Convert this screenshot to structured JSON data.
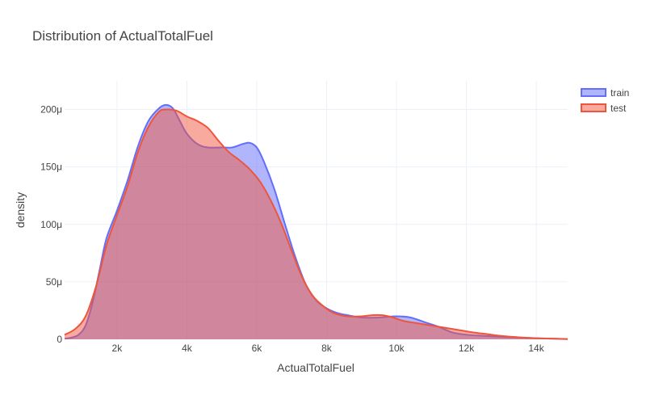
{
  "chart_data": {
    "type": "area",
    "title": "Distribution of ActualTotalFuel",
    "xlabel": "ActualTotalFuel",
    "ylabel": "density",
    "xlim": [
      500,
      14900
    ],
    "ylim": [
      0,
      0.000225
    ],
    "x_ticks": [
      {
        "value": 2000,
        "label": "2k"
      },
      {
        "value": 4000,
        "label": "4k"
      },
      {
        "value": 6000,
        "label": "6k"
      },
      {
        "value": 8000,
        "label": "8k"
      },
      {
        "value": 10000,
        "label": "10k"
      },
      {
        "value": 12000,
        "label": "12k"
      },
      {
        "value": 14000,
        "label": "14k"
      }
    ],
    "y_ticks": [
      {
        "value": 0,
        "label": "0"
      },
      {
        "value": 5e-05,
        "label": "50μ"
      },
      {
        "value": 0.0001,
        "label": "100μ"
      },
      {
        "value": 0.00015,
        "label": "150μ"
      },
      {
        "value": 0.0002,
        "label": "200μ"
      }
    ],
    "grid": true,
    "legend_position": "top-right",
    "series": [
      {
        "name": "train",
        "color": "#636efa",
        "fill": "rgba(99,110,250,0.5)",
        "points": [
          [
            500,
            5e-07
          ],
          [
            700,
            1.5e-06
          ],
          [
            900,
            4e-06
          ],
          [
            1100,
            1.2e-05
          ],
          [
            1300,
            3.2e-05
          ],
          [
            1500,
            6e-05
          ],
          [
            1700,
            8.8e-05
          ],
          [
            2000,
            0.000112
          ],
          [
            2300,
            0.000138
          ],
          [
            2600,
            0.000168
          ],
          [
            2900,
            0.00019
          ],
          [
            3200,
            0.000201
          ],
          [
            3400,
            0.000204
          ],
          [
            3600,
            0.000201
          ],
          [
            3800,
            0.00019
          ],
          [
            4000,
            0.000179
          ],
          [
            4300,
            0.00017
          ],
          [
            4600,
            0.000167
          ],
          [
            5000,
            0.000167
          ],
          [
            5300,
            0.000167
          ],
          [
            5600,
            0.00017
          ],
          [
            5800,
            0.000171
          ],
          [
            6000,
            0.000167
          ],
          [
            6200,
            0.000155
          ],
          [
            6500,
            0.000131
          ],
          [
            6800,
            0.000101
          ],
          [
            7100,
            7.2e-05
          ],
          [
            7400,
            4.8e-05
          ],
          [
            7700,
            3.4e-05
          ],
          [
            8000,
            2.7e-05
          ],
          [
            8300,
            2.3e-05
          ],
          [
            8600,
            2.1e-05
          ],
          [
            9000,
            1.9e-05
          ],
          [
            9500,
            1.9e-05
          ],
          [
            10000,
            2e-05
          ],
          [
            10400,
            1.9e-05
          ],
          [
            10800,
            1.5e-05
          ],
          [
            11200,
            1.1e-05
          ],
          [
            11600,
            6e-06
          ],
          [
            12000,
            4e-06
          ],
          [
            12500,
            3e-06
          ],
          [
            13000,
            2.2e-06
          ],
          [
            13500,
            1.5e-06
          ],
          [
            14000,
            1e-06
          ],
          [
            14500,
            5e-07
          ],
          [
            14900,
            2e-07
          ]
        ]
      },
      {
        "name": "test",
        "color": "#ef553b",
        "fill": "rgba(239,85,59,0.5)",
        "points": [
          [
            500,
            4e-06
          ],
          [
            800,
            9e-06
          ],
          [
            1100,
            2e-05
          ],
          [
            1400,
            4.6e-05
          ],
          [
            1700,
            8.2e-05
          ],
          [
            2000,
            0.000108
          ],
          [
            2300,
            0.000133
          ],
          [
            2600,
            0.000163
          ],
          [
            2900,
            0.000185
          ],
          [
            3200,
            0.000198
          ],
          [
            3400,
            0.0002
          ],
          [
            3700,
            0.000199
          ],
          [
            4000,
            0.000194
          ],
          [
            4300,
            0.00019
          ],
          [
            4600,
            0.000184
          ],
          [
            4900,
            0.000173
          ],
          [
            5200,
            0.000163
          ],
          [
            5500,
            0.000156
          ],
          [
            5800,
            0.000148
          ],
          [
            6100,
            0.000137
          ],
          [
            6400,
            0.000121
          ],
          [
            6700,
            0.000101
          ],
          [
            7000,
            7.7e-05
          ],
          [
            7300,
            5.4e-05
          ],
          [
            7600,
            3.8e-05
          ],
          [
            7900,
            2.9e-05
          ],
          [
            8200,
            2.3e-05
          ],
          [
            8600,
            2e-05
          ],
          [
            9000,
            2e-05
          ],
          [
            9300,
            2.1e-05
          ],
          [
            9600,
            2.1e-05
          ],
          [
            9900,
            1.9e-05
          ],
          [
            10200,
            1.6e-05
          ],
          [
            10600,
            1.4e-05
          ],
          [
            11000,
            1.2e-05
          ],
          [
            11400,
            1e-05
          ],
          [
            11800,
            8e-06
          ],
          [
            12200,
            6e-06
          ],
          [
            12600,
            4.5e-06
          ],
          [
            13000,
            3e-06
          ],
          [
            13500,
            1.8e-06
          ],
          [
            14000,
            1e-06
          ],
          [
            14500,
            6e-07
          ],
          [
            14900,
            3e-07
          ]
        ]
      }
    ]
  }
}
